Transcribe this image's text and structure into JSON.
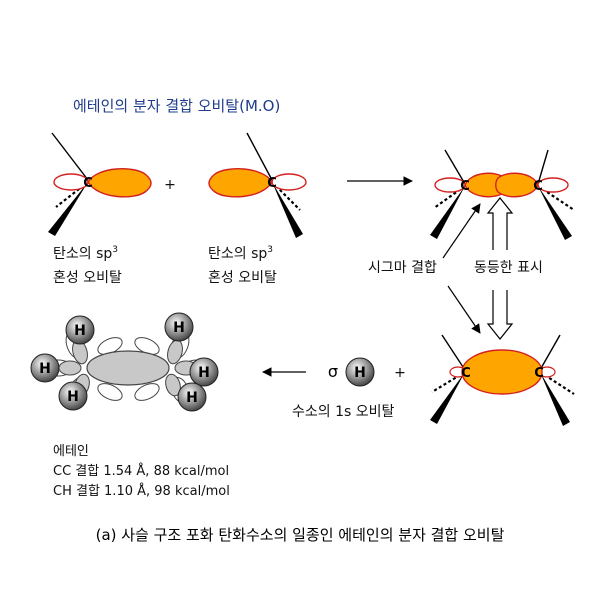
{
  "title": "에테인의 분자 결합 오비탈(M.O)",
  "plus_sign": "+",
  "carbon_symbol": "C",
  "hydrogen_symbol": "H",
  "sigma_symbol": "σ",
  "left_orbital_label": {
    "line1_prefix": "탄소의 sp",
    "line1_sup": "3",
    "line2": "혼성 오비탈"
  },
  "right_orbital_label": {
    "line1_prefix": "탄소의 sp",
    "line1_sup": "3",
    "line2": "혼성 오비탈"
  },
  "sigma_bond_label": "시그마 결합",
  "equivalent_label": "동등한 표시",
  "hydrogen_1s_label": "수소의 1s 오비탈",
  "ethane_info": {
    "name": "에테인",
    "cc_bond": "CC 결합 1.54 Å, 88 kcal/mol",
    "ch_bond": "CH 결합 1.10 Å, 98 kcal/mol"
  },
  "caption": "(a) 사슬 구조 포화 탄화수소의 일종인 에테인의 분자 결합 오비탈",
  "colors": {
    "orbital_fill": "#ffa500",
    "orbital_outline": "#d42020",
    "gray_lobe": "#c8c8c8",
    "h_atom_fill": "#5a5a5a",
    "title_color": "#1f3d8a"
  }
}
